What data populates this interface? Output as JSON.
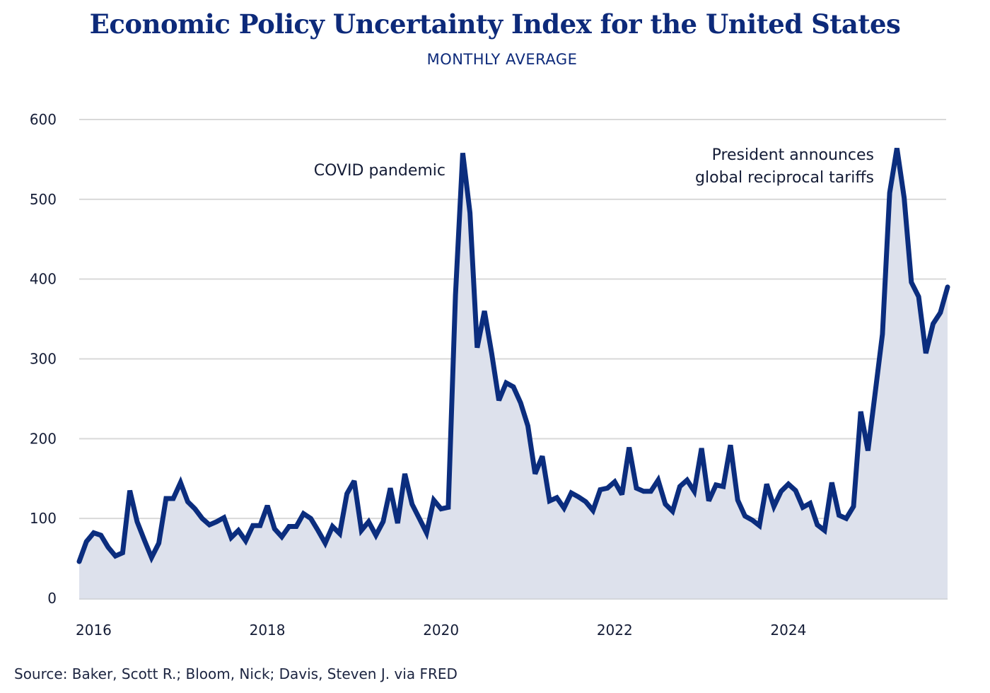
{
  "header": {
    "title": "Economic Policy Uncertainty Index for the United States",
    "subtitle": "MONTHLY AVERAGE"
  },
  "footer": {
    "source": "Source: Baker, Scott R.; Bloom, Nick; Davis, Steven J. via FRED"
  },
  "colors": {
    "line": "#0b2d7e",
    "fill": "#dde1ec",
    "grid": "#d9d9d9",
    "title": "#0d2a7a"
  },
  "chart_data": {
    "type": "area",
    "title": "Economic Policy Uncertainty Index for the United States",
    "subtitle": "MONTHLY AVERAGE",
    "xlabel": "",
    "ylabel": "",
    "x_start": "2015-11",
    "x_end": "2025-11",
    "frequency": "monthly",
    "ylim": [
      0,
      600
    ],
    "yticks": [
      0,
      100,
      200,
      300,
      400,
      500,
      600
    ],
    "xticks": [
      {
        "label": "2016",
        "month_index": 2
      },
      {
        "label": "2018",
        "month_index": 26
      },
      {
        "label": "2020",
        "month_index": 50
      },
      {
        "label": "2022",
        "month_index": 74
      },
      {
        "label": "2024",
        "month_index": 98
      }
    ],
    "grid": true,
    "legend": "none",
    "series": [
      {
        "name": "Economic Policy Uncertainty Index",
        "values": [
          46,
          71,
          82,
          79,
          64,
          53,
          57,
          135,
          96,
          73,
          51,
          69,
          125,
          125,
          145,
          121,
          112,
          100,
          92,
          96,
          101,
          76,
          85,
          72,
          91,
          91,
          116,
          87,
          77,
          90,
          90,
          106,
          100,
          85,
          69,
          90,
          81,
          131,
          147,
          85,
          96,
          79,
          96,
          138,
          94,
          156,
          118,
          100,
          82,
          123,
          112,
          114,
          380,
          558,
          483,
          314,
          360,
          307,
          248,
          270,
          265,
          245,
          216,
          156,
          178,
          122,
          126,
          113,
          132,
          127,
          121,
          110,
          136,
          138,
          146,
          130,
          189,
          138,
          134,
          134,
          148,
          118,
          109,
          140,
          148,
          134,
          188,
          122,
          142,
          140,
          192,
          123,
          103,
          98,
          91,
          143,
          115,
          134,
          143,
          135,
          114,
          119,
          92,
          85,
          145,
          104,
          100,
          115,
          234,
          185,
          258,
          331,
          508,
          564,
          502,
          396,
          378,
          307,
          344,
          358,
          390
        ]
      }
    ],
    "annotations": [
      {
        "text_lines": [
          "COVID pandemic"
        ],
        "month_index": 53,
        "align": "right"
      },
      {
        "text_lines": [
          "President announces",
          "global reciprocal tariffs"
        ],
        "month_index": 113,
        "align": "right"
      }
    ]
  }
}
